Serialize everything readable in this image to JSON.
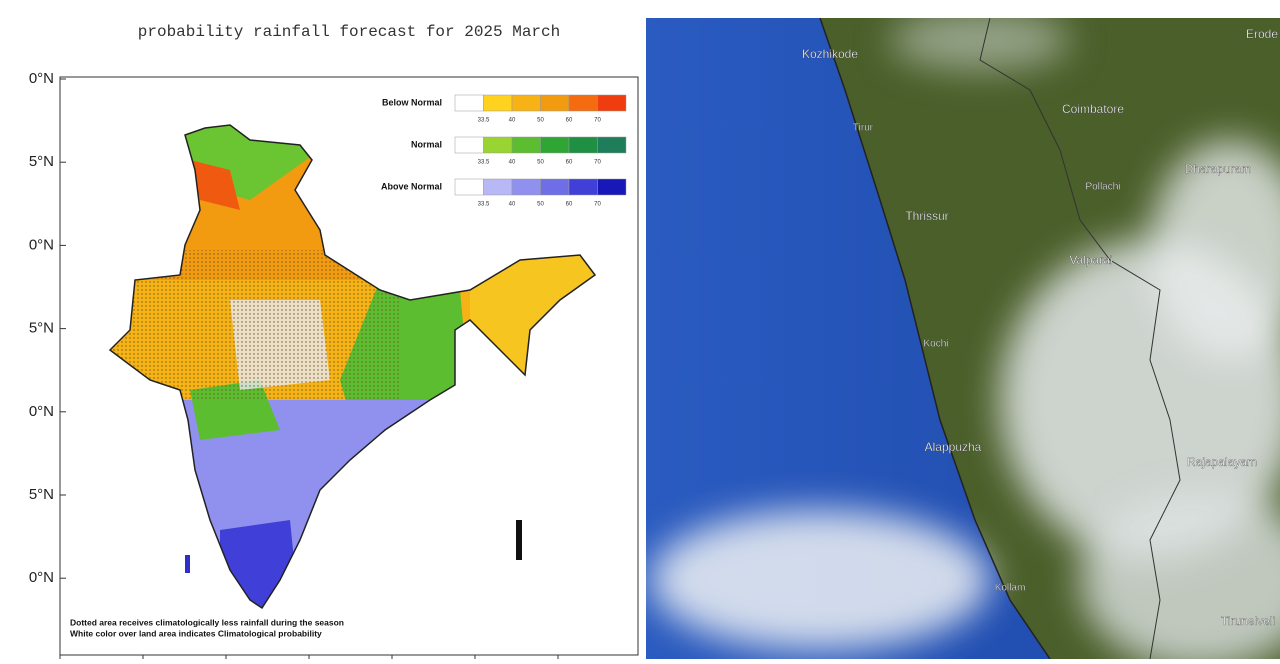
{
  "forecast_map": {
    "title": "probability rainfall forecast for 2025 March",
    "lat_labels": [
      "0°N",
      "5°N",
      "0°N",
      "5°N",
      "0°N",
      "5°N",
      "0°N"
    ],
    "legend": [
      {
        "name": "Below Normal",
        "ticks": [
          "33.5",
          "40",
          "50",
          "60",
          "70"
        ]
      },
      {
        "name": "Normal",
        "ticks": [
          "33.5",
          "40",
          "50",
          "60",
          "70"
        ]
      },
      {
        "name": "Above Normal",
        "ticks": [
          "33.5",
          "40",
          "50",
          "60",
          "70"
        ]
      }
    ],
    "note": [
      "Dotted area receives climatologically less rainfall during the season",
      "White color over land area indicates Climatological probability"
    ]
  },
  "satellite": {
    "places": [
      "Kozhikode",
      "Erode",
      "Tirur",
      "Coimbatore",
      "Dharapuram",
      "Pollachi",
      "Thrissur",
      "Valparai",
      "Kochi",
      "Alappuzha",
      "Rajapalayam",
      "Kollam",
      "Tirunelveli"
    ]
  }
}
